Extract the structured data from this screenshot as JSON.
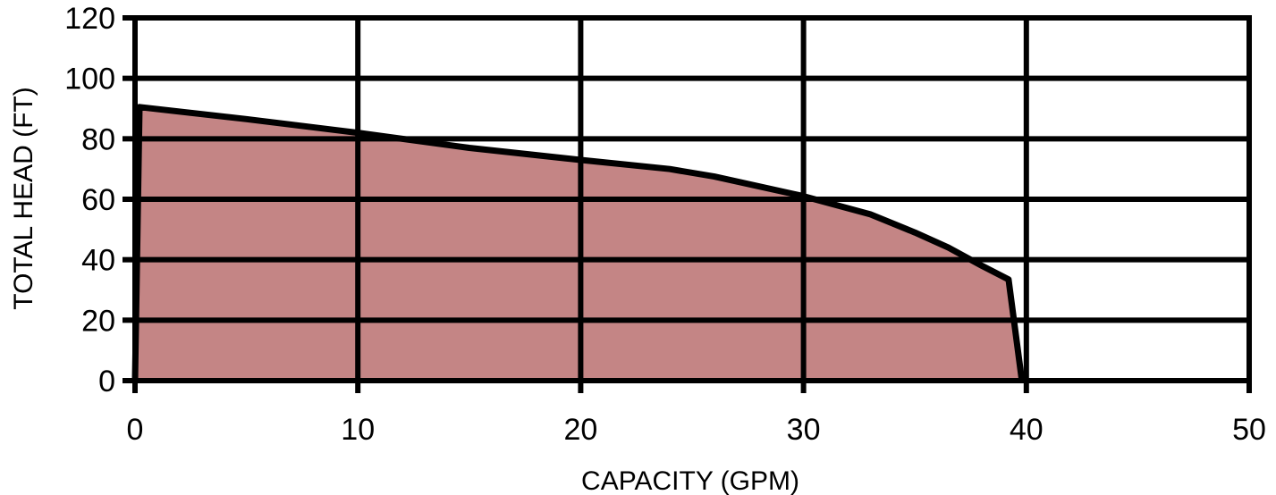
{
  "chart_data": {
    "type": "area",
    "title": "",
    "xlabel": "CAPACITY (GPM)",
    "ylabel": "TOTAL HEAD (FT)",
    "xlim": [
      0,
      50
    ],
    "ylim": [
      0,
      120
    ],
    "x_ticks": [
      0,
      10,
      20,
      30,
      40,
      50
    ],
    "y_ticks": [
      0,
      20,
      40,
      60,
      80,
      100,
      120
    ],
    "grid": true,
    "legend": "none",
    "fill_color": "#c48585",
    "line_color": "#000000",
    "series": [
      {
        "x": [
          0,
          0.2,
          5,
          10,
          15,
          20,
          24,
          26,
          30,
          33,
          35,
          36.5,
          38,
          39.2,
          39.8
        ],
        "y": [
          0,
          90.5,
          86.5,
          82,
          77,
          73,
          70,
          67.5,
          61,
          55,
          49,
          44,
          38,
          33.5,
          0
        ]
      }
    ]
  }
}
